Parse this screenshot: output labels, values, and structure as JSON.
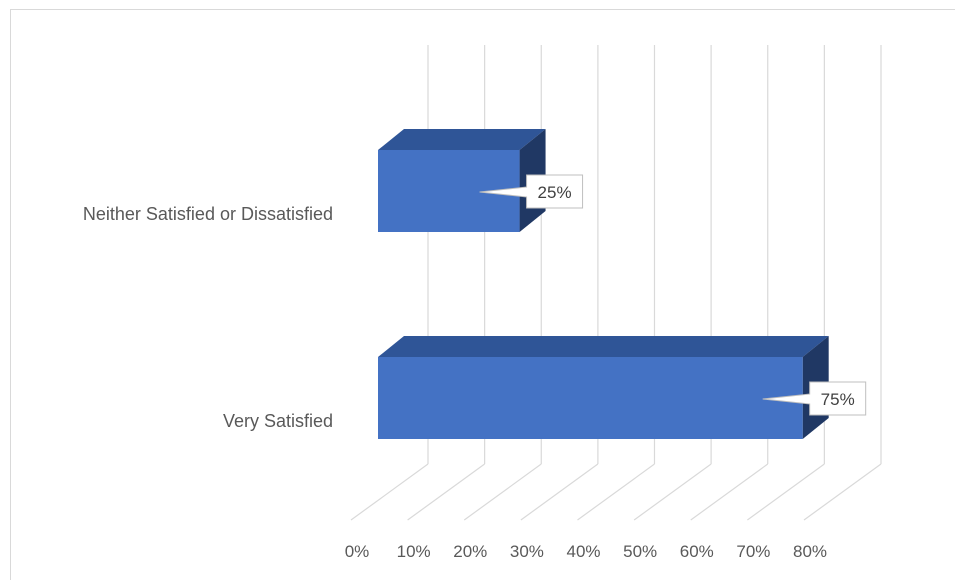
{
  "chart_data": {
    "type": "bar",
    "orientation": "horizontal",
    "style": "3d-clustered-bar",
    "categories": [
      "Neither Satisfied or Dissatisfied",
      "Very Satisfied"
    ],
    "values": [
      0.25,
      0.75
    ],
    "data_labels": [
      "25%",
      "75%"
    ],
    "xaxis": {
      "min": 0,
      "max": 0.8,
      "ticks": [
        "0%",
        "10%",
        "20%",
        "30%",
        "40%",
        "50%",
        "60%",
        "70%",
        "80%"
      ]
    },
    "grid": true,
    "legend": "none",
    "colors": {
      "bar_front": "#4472c4",
      "bar_top": "#2f5597",
      "bar_side": "#203864",
      "grid": "#d9d9d9"
    }
  }
}
